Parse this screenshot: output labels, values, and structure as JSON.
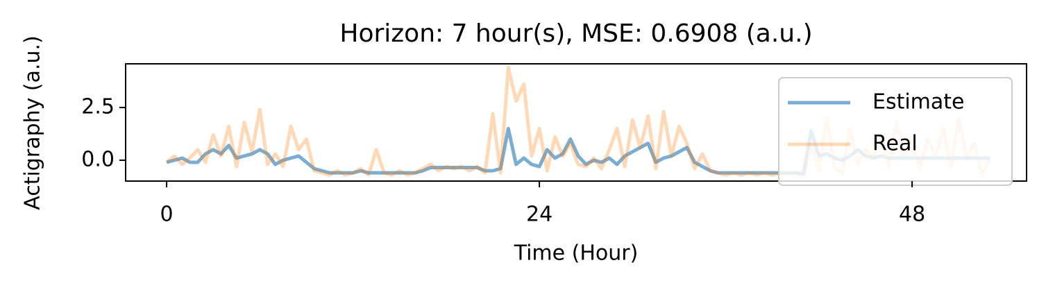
{
  "chart_data": {
    "type": "line",
    "title": "Horizon: 7 hour(s), MSE: 0.6908 (a.u.)",
    "xlabel": "Time (Hour)",
    "ylabel": "Actigraphy (a.u.)",
    "xlim": [
      -2.64,
      55.37
    ],
    "ylim": [
      -0.99,
      4.57
    ],
    "xticks": [
      0,
      24,
      48
    ],
    "yticks": [
      {
        "value": 0,
        "label": "0.0"
      },
      2.5
    ],
    "legend": "upper right",
    "grid": false,
    "x": [
      0,
      0.5,
      1,
      1.5,
      2,
      2.5,
      3,
      3.5,
      4,
      4.5,
      5,
      5.5,
      6,
      6.5,
      7,
      7.5,
      8,
      8.5,
      9,
      9.5,
      10,
      10.5,
      11,
      11.5,
      12,
      12.5,
      13,
      13.5,
      14,
      14.5,
      15,
      15.5,
      16,
      16.5,
      17,
      17.5,
      18,
      18.5,
      19,
      19.5,
      20,
      20.5,
      21,
      21.5,
      22,
      22.5,
      23,
      23.5,
      24,
      24.5,
      25,
      25.5,
      26,
      26.5,
      27,
      27.5,
      28,
      28.5,
      29,
      29.5,
      30,
      30.5,
      31,
      31.5,
      32,
      32.5,
      33,
      33.5,
      34,
      34.5,
      35,
      35.5,
      36,
      36.5,
      37,
      37.5,
      38,
      38.5,
      39,
      39.5,
      40,
      40.5,
      41,
      41.5,
      42,
      42.5,
      43,
      43.5,
      44,
      44.5,
      45,
      45.5,
      46,
      46.5,
      47,
      47.5,
      48,
      48.5,
      49,
      49.5,
      50,
      50.5,
      51,
      51.5,
      52,
      52.5,
      53
    ],
    "series": [
      {
        "name": "Estimate",
        "color": "#1f77b4",
        "opacity": 0.6,
        "values": [
          -0.1,
          0,
          0.1,
          -0.1,
          -0.1,
          0.3,
          0.5,
          0.3,
          0.7,
          0.1,
          0.2,
          0.3,
          0.5,
          0.3,
          -0.2,
          0,
          0.1,
          0.2,
          -0.1,
          -0.4,
          -0.5,
          -0.6,
          -0.6,
          -0.6,
          -0.6,
          -0.5,
          -0.6,
          -0.6,
          -0.6,
          -0.6,
          -0.6,
          -0.6,
          -0.6,
          -0.5,
          -0.35,
          -0.35,
          -0.35,
          -0.35,
          -0.35,
          -0.35,
          -0.35,
          -0.5,
          -0.5,
          -0.4,
          1.5,
          -0.2,
          0.1,
          -0.2,
          -0.3,
          0.5,
          0.1,
          0.3,
          1.0,
          0.2,
          -0.2,
          0,
          -0.1,
          0.1,
          -0.2,
          0.2,
          0.4,
          0.6,
          0.8,
          -0.1,
          0.1,
          0.2,
          0.4,
          0.6,
          -0.1,
          -0.3,
          -0.5,
          -0.6,
          -0.6,
          -0.6,
          -0.6,
          -0.6,
          -0.6,
          -0.6,
          -0.6,
          -0.6,
          -0.6,
          -0.6,
          -0.65,
          1.4,
          0.2,
          0.3,
          0.1,
          0,
          0.2,
          0.5,
          0.2,
          0.1,
          0.2,
          0.1,
          0.1,
          0.1,
          0.1,
          0.1,
          0.1,
          0.1,
          0.1,
          0.1,
          0.1,
          0.1,
          0.1,
          0.1,
          0.1
        ]
      },
      {
        "name": "Real",
        "color": "#ff7f0e",
        "opacity": 0.3,
        "values": [
          -0.1,
          0.2,
          -0.2,
          0.1,
          0.5,
          -0.1,
          1.2,
          0.2,
          1.6,
          -0.3,
          1.8,
          0.4,
          2.4,
          -0.2,
          0.3,
          -0.3,
          1.6,
          0.5,
          1.0,
          -0.5,
          -0.6,
          -0.7,
          -0.5,
          -0.7,
          -0.6,
          -0.4,
          -0.7,
          0.5,
          -0.6,
          -0.7,
          -0.5,
          -0.7,
          -0.6,
          -0.4,
          -0.2,
          -0.5,
          -0.3,
          -0.4,
          -0.3,
          -0.5,
          -0.3,
          -0.6,
          2.2,
          -0.6,
          4.4,
          2.8,
          3.6,
          0.2,
          1.5,
          -0.5,
          1.1,
          0.2,
          0.8,
          -0.2,
          -0.3,
          0.1,
          -0.4,
          0.5,
          1.5,
          -0.3,
          1.9,
          0.6,
          2.1,
          -0.4,
          2.3,
          0.2,
          1.6,
          0.8,
          -0.4,
          0.3,
          -0.5,
          -0.6,
          -0.7,
          -0.6,
          -0.7,
          -0.6,
          -0.7,
          -0.6,
          -0.7,
          -0.6,
          -0.7,
          -0.6,
          -0.8,
          0.8,
          -0.5,
          2.0,
          -0.3,
          -0.6,
          1.5,
          -0.2,
          0.5,
          0.1,
          1.2,
          -0.3,
          1.8,
          0.2,
          0.9,
          -0.4,
          1.0,
          0.2,
          1.5,
          -0.3,
          2.0,
          0.1,
          0.8,
          -0.7,
          0.1
        ]
      }
    ]
  }
}
